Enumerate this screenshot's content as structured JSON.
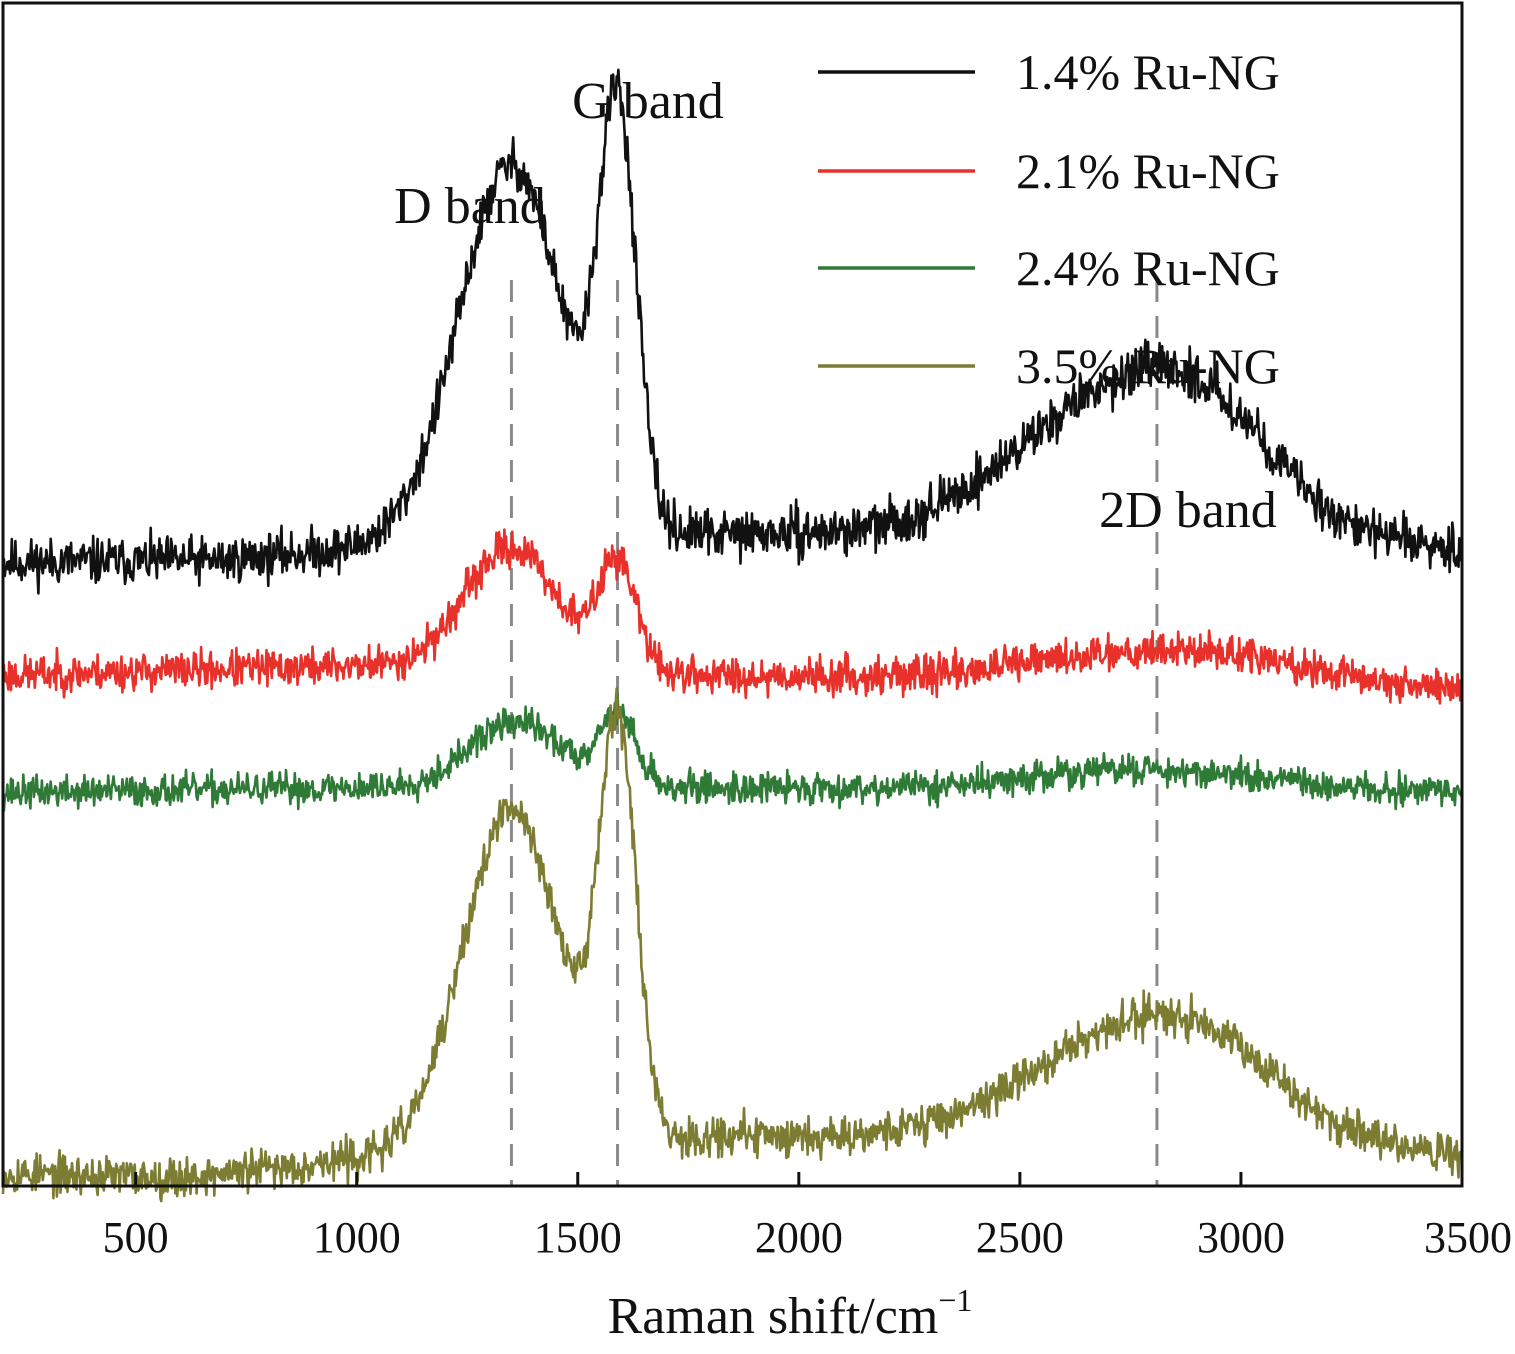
{
  "chart_data": {
    "type": "line",
    "title": "",
    "xlabel": "Raman shift/cm",
    "xlabel_superscript": "−1",
    "ylabel": "",
    "xlim": [
      200,
      3500
    ],
    "xticks": [
      500,
      1000,
      1500,
      2000,
      2500,
      3000,
      3500
    ],
    "y_ticks_shown": false,
    "grid": false,
    "legend_position": "top-right",
    "reference_lines_x": [
      1350,
      1590,
      2810
    ],
    "annotations": [
      {
        "text": "G band",
        "x": 1590
      },
      {
        "text": "D band",
        "x": 1350
      },
      {
        "text": "2D band",
        "x": 2810
      }
    ],
    "series": [
      {
        "name": "1.4% Ru-NG",
        "color": "#111111",
        "noise": 0.035,
        "seed": 11,
        "baseline": [
          [
            200,
            0.31
          ],
          [
            700,
            0.315
          ],
          [
            1000,
            0.34
          ],
          [
            1200,
            0.38
          ],
          [
            1800,
            0.37
          ],
          [
            2200,
            0.37
          ],
          [
            2600,
            0.38
          ],
          [
            3000,
            0.38
          ],
          [
            3500,
            0.34
          ]
        ],
        "peaks": [
          {
            "center": 1350,
            "height": 0.78,
            "width": 115
          },
          {
            "center": 1590,
            "height": 0.86,
            "width": 42
          },
          {
            "center": 2720,
            "height": 0.28,
            "width": 230
          },
          {
            "center": 2940,
            "height": 0.12,
            "width": 150
          }
        ]
      },
      {
        "name": "2.1% Ru-NG",
        "color": "#e8312a",
        "noise": 0.028,
        "seed": 23,
        "baseline": [
          [
            200,
            0.07
          ],
          [
            1000,
            0.09
          ],
          [
            1800,
            0.07
          ],
          [
            2600,
            0.06
          ],
          [
            3000,
            0.07
          ],
          [
            3500,
            0.04
          ]
        ],
        "peaks": [
          {
            "center": 1350,
            "height": 0.26,
            "width": 105
          },
          {
            "center": 1590,
            "height": 0.23,
            "width": 42
          },
          {
            "center": 2790,
            "height": 0.06,
            "width": 260
          }
        ]
      },
      {
        "name": "2.4% Ru-NG",
        "color": "#2e7a36",
        "noise": 0.024,
        "seed": 37,
        "baseline": [
          [
            200,
            -0.18
          ],
          [
            1000,
            -0.17
          ],
          [
            1800,
            -0.17
          ],
          [
            2600,
            -0.17
          ],
          [
            3000,
            -0.17
          ],
          [
            3500,
            -0.18
          ]
        ],
        "peaks": [
          {
            "center": 1360,
            "height": 0.14,
            "width": 105
          },
          {
            "center": 1590,
            "height": 0.15,
            "width": 42
          },
          {
            "center": 2780,
            "height": 0.04,
            "width": 230
          }
        ]
      },
      {
        "name": "3.5% Ru-NG",
        "color": "#7c7c32",
        "noise": 0.03,
        "seed": 53,
        "baseline": [
          [
            200,
            -0.99
          ],
          [
            600,
            -1.0
          ],
          [
            1000,
            -0.96
          ],
          [
            1800,
            -0.91
          ],
          [
            2200,
            -0.91
          ],
          [
            2600,
            -0.9
          ],
          [
            3000,
            -0.9
          ],
          [
            3500,
            -0.95
          ]
        ],
        "peaks": [
          {
            "center": 1350,
            "height": 0.72,
            "width": 110
          },
          {
            "center": 1590,
            "height": 0.86,
            "width": 42
          },
          {
            "center": 2750,
            "height": 0.2,
            "width": 230
          },
          {
            "center": 2940,
            "height": 0.08,
            "width": 150
          }
        ]
      }
    ]
  }
}
